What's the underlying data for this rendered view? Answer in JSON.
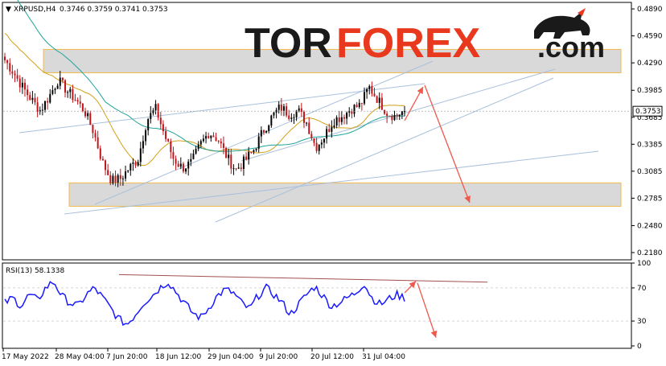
{
  "header": {
    "symbol": "XRPUSD,H4",
    "ohlc": "0.3746 0.3759 0.3741 0.3753"
  },
  "logo": {
    "part1": "TOR",
    "part2": "FOREX",
    "part3": ".com",
    "icon": "bull-icon"
  },
  "colors": {
    "bull": "#000000",
    "bear": "#c0151a",
    "ma_fast": "#d4a017",
    "ma_slow": "#1fa39a",
    "zone_fill": "#d9d9d9",
    "zone_edge": "#f2b84b",
    "trend": "#a9c0dc",
    "arrow": "#f0574a",
    "rsi_line": "#1a1aff",
    "rsi_trend": "#a05050",
    "grid": "#c8c8c8"
  },
  "price_label": "0.3753",
  "rsi_label": "RSI(13) 58.1338",
  "chart_data": {
    "type": "candlestick",
    "price_ticks": [
      "0.4890",
      "0.4590",
      "0.4290",
      "0.3985",
      "0.3685",
      "0.3385",
      "0.3085",
      "0.2785",
      "0.2480",
      "0.2180"
    ],
    "price_tick_values": [
      0.489,
      0.459,
      0.429,
      0.3985,
      0.3685,
      0.3385,
      0.3085,
      0.2785,
      0.248,
      0.218
    ],
    "ylim": [
      0.218,
      0.5
    ],
    "current_price": 0.3753,
    "x_labels": [
      "17 May 2022",
      "28 May 04:00",
      "7 Jun 20:00",
      "18 Jun 12:00",
      "29 Jun 04:00",
      "9 Jul 20:00",
      "20 Jul 12:00",
      "31 Jul 04:00"
    ],
    "bar_count": 160,
    "close_path": [
      0.432,
      0.418,
      0.402,
      0.388,
      0.376,
      0.392,
      0.41,
      0.398,
      0.388,
      0.375,
      0.352,
      0.318,
      0.298,
      0.3,
      0.312,
      0.322,
      0.366,
      0.378,
      0.348,
      0.322,
      0.312,
      0.318,
      0.338,
      0.352,
      0.344,
      0.324,
      0.31,
      0.32,
      0.332,
      0.352,
      0.368,
      0.38,
      0.372,
      0.376,
      0.362,
      0.335,
      0.348,
      0.365,
      0.37,
      0.378,
      0.382,
      0.402,
      0.388,
      0.374,
      0.369,
      0.377
    ],
    "zones": [
      {
        "low": 0.418,
        "high": 0.444
      },
      {
        "low": 0.2695,
        "high": 0.2955
      }
    ],
    "rsi": {
      "label": "RSI(13) 58.1338",
      "levels": [
        30,
        70
      ],
      "ticks": [
        "100",
        "70",
        "30",
        "0"
      ],
      "tick_values": [
        100,
        70,
        30,
        0
      ],
      "ylim": [
        0,
        100
      ],
      "path": [
        52,
        58,
        48,
        62,
        55,
        70,
        78,
        60,
        52,
        48,
        62,
        70,
        58,
        45,
        32,
        26,
        38,
        52,
        60,
        70,
        78,
        65,
        52,
        40,
        34,
        46,
        60,
        68,
        64,
        52,
        44,
        60,
        70,
        62,
        52,
        38,
        50,
        62,
        72,
        60,
        48,
        52,
        58,
        64,
        76,
        58,
        50,
        56,
        62,
        58
      ]
    }
  }
}
